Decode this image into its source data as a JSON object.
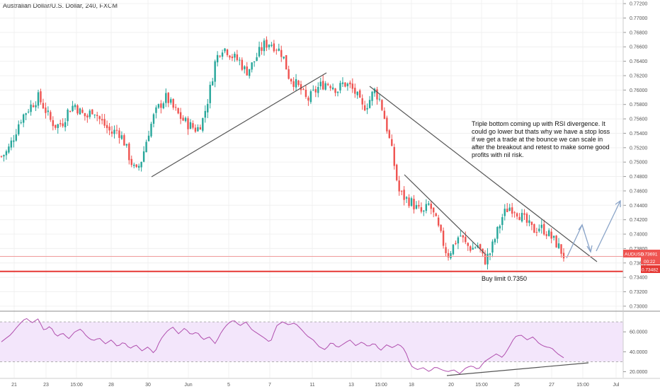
{
  "header": {
    "title": "Australian Dollar/U.S. Dollar, 240, FXCM"
  },
  "colors": {
    "up": "#26a69a",
    "down": "#ef5350",
    "trendline": "#555555",
    "arrow": "#8aa4c8",
    "rsi_line": "#b04fae",
    "rsi_fill": "#f3e6fb",
    "support": "#e53935"
  },
  "price_axis": {
    "ticks": [
      "0.77200",
      "0.77000",
      "0.76800",
      "0.76600",
      "0.76400",
      "0.76200",
      "0.76000",
      "0.75800",
      "0.75600",
      "0.75400",
      "0.75200",
      "0.75000",
      "0.74800",
      "0.74600",
      "0.74400",
      "0.74200",
      "0.74000",
      "0.73800",
      "0.73600",
      "0.73400",
      "0.73200",
      "0.73000"
    ],
    "ylim": [
      0.7295,
      0.7725
    ]
  },
  "x_axis": {
    "labels": [
      "21",
      "23",
      "15:00",
      "28",
      "30",
      "Jun",
      "5",
      "7",
      "11",
      "13",
      "15:00",
      "18",
      "20",
      "15:00",
      "25",
      "27",
      "15:00",
      "Jul"
    ]
  },
  "rsi_axis": {
    "ticks": [
      "60.0000",
      "40.0000",
      "20.0000"
    ],
    "ylim": [
      14,
      80
    ],
    "band": [
      30,
      70
    ]
  },
  "badges": {
    "symbol": "AUDUSD",
    "current_price": "0.73691",
    "countdown": "00:22",
    "support_price": "0.73482"
  },
  "annotations": {
    "note": [
      "Triple bottom coming up with RSI divergence. It",
      "could go lower but thats why we have a stop loss",
      "if we get a trade at the bounce we can scale in",
      "after the breakout and retest to make some good",
      "profits with nil risk."
    ],
    "buy_limit": "Buy limit 0.7350"
  },
  "chart_data": {
    "type": "candlestick",
    "title": "Australian Dollar/U.S. Dollar, 240, FXCM",
    "timeframe": "240",
    "current_price": 0.73691,
    "support_level": 0.73482,
    "buy_limit": 0.735,
    "close_path": [
      [
        0,
        0.7508
      ],
      [
        5,
        0.7515
      ],
      [
        10,
        0.7535
      ],
      [
        15,
        0.7558
      ],
      [
        20,
        0.757
      ],
      [
        25,
        0.758
      ],
      [
        30,
        0.759
      ],
      [
        35,
        0.7576
      ],
      [
        40,
        0.7558
      ],
      [
        45,
        0.755
      ],
      [
        50,
        0.7555
      ],
      [
        55,
        0.7573
      ],
      [
        60,
        0.758
      ],
      [
        65,
        0.7568
      ],
      [
        70,
        0.7562
      ],
      [
        75,
        0.7575
      ],
      [
        80,
        0.756
      ],
      [
        85,
        0.755
      ],
      [
        90,
        0.754
      ],
      [
        95,
        0.7545
      ],
      [
        100,
        0.753
      ],
      [
        105,
        0.7505
      ],
      [
        110,
        0.7485
      ],
      [
        115,
        0.7505
      ],
      [
        120,
        0.754
      ],
      [
        125,
        0.7565
      ],
      [
        130,
        0.758
      ],
      [
        135,
        0.759
      ],
      [
        140,
        0.7576
      ],
      [
        145,
        0.7565
      ],
      [
        150,
        0.7556
      ],
      [
        155,
        0.755
      ],
      [
        160,
        0.7545
      ],
      [
        165,
        0.756
      ],
      [
        170,
        0.7595
      ],
      [
        175,
        0.764
      ],
      [
        180,
        0.766
      ],
      [
        185,
        0.7655
      ],
      [
        190,
        0.7645
      ],
      [
        195,
        0.764
      ],
      [
        200,
        0.7625
      ],
      [
        205,
        0.7635
      ],
      [
        210,
        0.765
      ],
      [
        215,
        0.7663
      ],
      [
        220,
        0.7666
      ],
      [
        225,
        0.7659
      ],
      [
        230,
        0.765
      ],
      [
        235,
        0.762
      ],
      [
        240,
        0.761
      ],
      [
        245,
        0.76
      ],
      [
        250,
        0.7585
      ],
      [
        255,
        0.7595
      ],
      [
        260,
        0.7605
      ],
      [
        265,
        0.761
      ],
      [
        270,
        0.7608
      ],
      [
        275,
        0.76
      ],
      [
        280,
        0.761
      ],
      [
        285,
        0.7605
      ],
      [
        290,
        0.7595
      ],
      [
        295,
        0.7575
      ],
      [
        300,
        0.7582
      ],
      [
        305,
        0.76
      ],
      [
        310,
        0.7585
      ],
      [
        315,
        0.755
      ],
      [
        320,
        0.751
      ],
      [
        325,
        0.746
      ],
      [
        330,
        0.745
      ],
      [
        335,
        0.7445
      ],
      [
        340,
        0.7435
      ],
      [
        345,
        0.7428
      ],
      [
        350,
        0.7442
      ],
      [
        355,
        0.742
      ],
      [
        360,
        0.7395
      ],
      [
        365,
        0.737
      ],
      [
        370,
        0.7385
      ],
      [
        375,
        0.74
      ],
      [
        380,
        0.7385
      ],
      [
        385,
        0.738
      ],
      [
        390,
        0.7385
      ],
      [
        395,
        0.7362
      ],
      [
        400,
        0.7375
      ],
      [
        405,
        0.74
      ],
      [
        410,
        0.7425
      ],
      [
        415,
        0.7438
      ],
      [
        420,
        0.7435
      ],
      [
        425,
        0.7425
      ],
      [
        430,
        0.7415
      ],
      [
        435,
        0.7405
      ],
      [
        440,
        0.741
      ],
      [
        445,
        0.7405
      ],
      [
        450,
        0.7395
      ],
      [
        455,
        0.7385
      ],
      [
        460,
        0.737
      ]
    ],
    "rsi_path": [
      [
        0,
        50
      ],
      [
        6,
        57
      ],
      [
        12,
        68
      ],
      [
        16,
        74
      ],
      [
        20,
        69
      ],
      [
        24,
        73
      ],
      [
        28,
        61
      ],
      [
        32,
        66
      ],
      [
        36,
        55
      ],
      [
        40,
        59
      ],
      [
        44,
        53
      ],
      [
        48,
        60
      ],
      [
        52,
        63
      ],
      [
        56,
        55
      ],
      [
        60,
        51
      ],
      [
        64,
        54
      ],
      [
        68,
        48
      ],
      [
        72,
        52
      ],
      [
        76,
        45
      ],
      [
        80,
        50
      ],
      [
        84,
        43
      ],
      [
        88,
        47
      ],
      [
        92,
        41
      ],
      [
        96,
        45
      ],
      [
        100,
        38
      ],
      [
        104,
        52
      ],
      [
        108,
        60
      ],
      [
        112,
        65
      ],
      [
        116,
        58
      ],
      [
        120,
        64
      ],
      [
        124,
        57
      ],
      [
        128,
        60
      ],
      [
        132,
        52
      ],
      [
        136,
        55
      ],
      [
        140,
        48
      ],
      [
        144,
        60
      ],
      [
        148,
        68
      ],
      [
        152,
        72
      ],
      [
        156,
        66
      ],
      [
        160,
        70
      ],
      [
        164,
        62
      ],
      [
        168,
        58
      ],
      [
        172,
        54
      ],
      [
        176,
        49
      ],
      [
        180,
        66
      ],
      [
        184,
        70
      ],
      [
        188,
        67
      ],
      [
        192,
        69
      ],
      [
        196,
        63
      ],
      [
        200,
        56
      ],
      [
        204,
        52
      ],
      [
        208,
        45
      ],
      [
        212,
        42
      ],
      [
        216,
        50
      ],
      [
        220,
        44
      ],
      [
        224,
        48
      ],
      [
        228,
        52
      ],
      [
        232,
        46
      ],
      [
        236,
        50
      ],
      [
        240,
        45
      ],
      [
        244,
        49
      ],
      [
        248,
        41
      ],
      [
        252,
        47
      ],
      [
        256,
        44
      ],
      [
        260,
        48
      ],
      [
        264,
        42
      ],
      [
        268,
        26
      ],
      [
        272,
        22
      ],
      [
        276,
        24
      ],
      [
        280,
        20
      ],
      [
        284,
        25
      ],
      [
        288,
        22
      ],
      [
        292,
        20
      ],
      [
        296,
        22
      ],
      [
        300,
        18
      ],
      [
        304,
        24
      ],
      [
        308,
        26
      ],
      [
        312,
        22
      ],
      [
        316,
        30
      ],
      [
        320,
        34
      ],
      [
        324,
        38
      ],
      [
        328,
        34
      ],
      [
        332,
        44
      ],
      [
        336,
        55
      ],
      [
        340,
        57
      ],
      [
        344,
        52
      ],
      [
        348,
        55
      ],
      [
        352,
        48
      ],
      [
        356,
        45
      ],
      [
        360,
        44
      ],
      [
        364,
        38
      ],
      [
        368,
        34
      ]
    ]
  }
}
